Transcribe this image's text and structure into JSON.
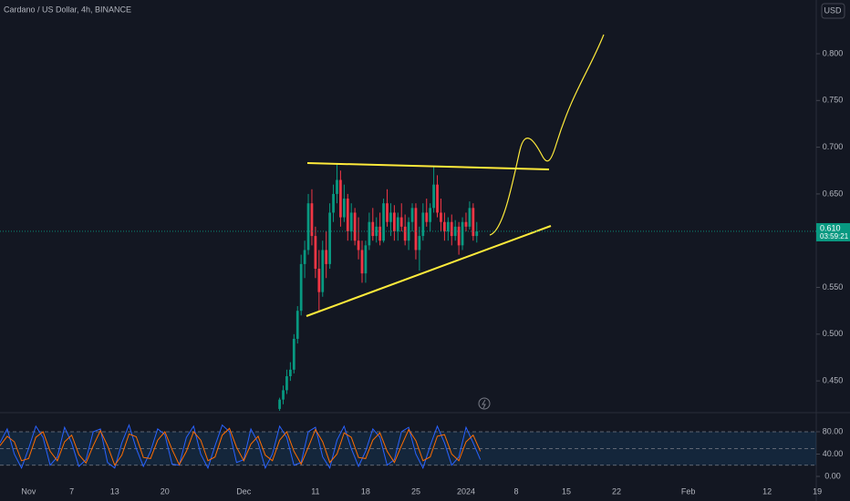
{
  "chart_data": [
    {
      "type": "candlestick",
      "title": "Cardano / US Dollar, 4h, BINANCE",
      "currency": "USD",
      "up_color": "#089981",
      "down_color": "#f23645",
      "x": [
        35,
        35.5,
        36,
        36.5,
        37,
        37.5,
        38,
        38.5,
        39,
        39.5,
        40,
        40.5,
        41,
        41.5,
        42,
        42.5,
        43,
        43.5,
        44,
        44.5,
        45,
        45.5,
        46,
        46.5,
        47,
        47.5,
        48,
        48.5,
        49,
        49.5,
        50,
        50.5,
        51,
        51.5,
        52,
        52.5,
        53,
        53.5,
        54,
        54.5,
        55,
        55.5,
        56,
        56.5,
        57,
        57.5,
        58,
        58.5,
        59,
        59.5,
        60,
        60.5,
        61,
        61.5,
        62,
        62.5
      ],
      "open": [
        0.42,
        0.43,
        0.44,
        0.455,
        0.462,
        0.495,
        0.525,
        0.575,
        0.59,
        0.64,
        0.605,
        0.57,
        0.545,
        0.59,
        0.575,
        0.63,
        0.65,
        0.665,
        0.625,
        0.645,
        0.61,
        0.63,
        0.6,
        0.59,
        0.565,
        0.595,
        0.62,
        0.605,
        0.615,
        0.6,
        0.64,
        0.62,
        0.63,
        0.61,
        0.625,
        0.615,
        0.6,
        0.62,
        0.635,
        0.59,
        0.605,
        0.63,
        0.62,
        0.635,
        0.66,
        0.63,
        0.62,
        0.61,
        0.62,
        0.605,
        0.615,
        0.595,
        0.62,
        0.615,
        0.635,
        0.605
      ],
      "high": [
        0.432,
        0.445,
        0.462,
        0.47,
        0.5,
        0.53,
        0.585,
        0.6,
        0.65,
        0.655,
        0.615,
        0.59,
        0.6,
        0.61,
        0.64,
        0.66,
        0.682,
        0.675,
        0.66,
        0.65,
        0.64,
        0.635,
        0.625,
        0.6,
        0.6,
        0.63,
        0.635,
        0.625,
        0.63,
        0.645,
        0.655,
        0.64,
        0.638,
        0.63,
        0.64,
        0.628,
        0.625,
        0.64,
        0.64,
        0.615,
        0.64,
        0.645,
        0.64,
        0.68,
        0.67,
        0.645,
        0.63,
        0.625,
        0.628,
        0.622,
        0.62,
        0.625,
        0.63,
        0.642,
        0.64,
        0.62
      ],
      "low": [
        0.418,
        0.425,
        0.436,
        0.45,
        0.458,
        0.49,
        0.52,
        0.56,
        0.585,
        0.595,
        0.56,
        0.525,
        0.54,
        0.56,
        0.57,
        0.62,
        0.64,
        0.615,
        0.62,
        0.6,
        0.6,
        0.595,
        0.58,
        0.555,
        0.555,
        0.59,
        0.6,
        0.598,
        0.595,
        0.598,
        0.615,
        0.605,
        0.6,
        0.6,
        0.61,
        0.595,
        0.59,
        0.61,
        0.58,
        0.568,
        0.6,
        0.615,
        0.61,
        0.63,
        0.625,
        0.61,
        0.6,
        0.6,
        0.595,
        0.6,
        0.585,
        0.59,
        0.61,
        0.612,
        0.6,
        0.598
      ],
      "close": [
        0.43,
        0.44,
        0.455,
        0.462,
        0.495,
        0.525,
        0.575,
        0.59,
        0.64,
        0.605,
        0.57,
        0.545,
        0.59,
        0.575,
        0.63,
        0.65,
        0.665,
        0.625,
        0.645,
        0.61,
        0.63,
        0.6,
        0.59,
        0.565,
        0.595,
        0.62,
        0.605,
        0.615,
        0.6,
        0.64,
        0.62,
        0.63,
        0.61,
        0.625,
        0.615,
        0.6,
        0.62,
        0.635,
        0.59,
        0.605,
        0.63,
        0.62,
        0.635,
        0.66,
        0.63,
        0.62,
        0.61,
        0.62,
        0.605,
        0.615,
        0.595,
        0.62,
        0.615,
        0.635,
        0.605,
        0.61
      ],
      "last_price": 0.61,
      "last_price_label": "0.610",
      "countdown": "03:59:21",
      "ylim": [
        0.417,
        0.8575
      ],
      "yticks": [
        {
          "value": 0.8,
          "label": "0.800"
        },
        {
          "value": 0.75,
          "label": "0.750"
        },
        {
          "value": 0.7,
          "label": "0.700"
        },
        {
          "value": 0.65,
          "label": "0.650"
        },
        {
          "value": 0.55,
          "label": "0.550"
        },
        {
          "value": 0.5,
          "label": "0.500"
        },
        {
          "value": 0.45,
          "label": "0.450"
        }
      ],
      "xlim": [
        -4,
        109.85
      ],
      "xticks": [
        {
          "value": 0,
          "label": "Nov"
        },
        {
          "value": 6,
          "label": "7"
        },
        {
          "value": 12,
          "label": "13"
        },
        {
          "value": 19,
          "label": "20"
        },
        {
          "value": 30,
          "label": "Dec"
        },
        {
          "value": 40,
          "label": "11"
        },
        {
          "value": 47,
          "label": "18"
        },
        {
          "value": 54,
          "label": "25"
        },
        {
          "value": 61,
          "label": "2024"
        },
        {
          "value": 68,
          "label": "8"
        },
        {
          "value": 75,
          "label": "15"
        },
        {
          "value": 82,
          "label": "22"
        },
        {
          "value": 92,
          "label": "Feb"
        },
        {
          "value": 103,
          "label": "12"
        },
        {
          "value": 110,
          "label": "19"
        }
      ]
    },
    {
      "type": "line",
      "xlim": [
        -4,
        109.85
      ],
      "ylim": [
        -14.7,
        111
      ],
      "yticks": [
        {
          "value": 80,
          "label": "80.00"
        },
        {
          "value": 40,
          "label": "40.00"
        },
        {
          "value": 0,
          "label": "0.00"
        }
      ],
      "bands": [
        80,
        50,
        20
      ],
      "x": [
        -4,
        -3,
        -2,
        -1,
        0,
        1,
        2,
        3,
        4,
        5,
        6,
        7,
        8,
        9,
        10,
        11,
        12,
        13,
        14,
        15,
        16,
        17,
        18,
        19,
        20,
        21,
        22,
        23,
        24,
        25,
        26,
        27,
        28,
        29,
        30,
        31,
        32,
        33,
        34,
        35,
        36,
        37,
        38,
        39,
        40,
        41,
        42,
        43,
        44,
        45,
        46,
        47,
        48,
        49,
        50,
        51,
        52,
        53,
        54,
        55,
        56,
        57,
        58,
        59,
        60,
        61,
        62,
        63
      ],
      "series": [
        {
          "color": "#2962ff",
          "values": [
            60,
            85,
            40,
            15,
            50,
            90,
            70,
            20,
            35,
            88,
            60,
            18,
            30,
            80,
            85,
            25,
            15,
            60,
            92,
            50,
            18,
            45,
            85,
            75,
            22,
            20,
            70,
            90,
            40,
            15,
            55,
            92,
            80,
            25,
            30,
            85,
            60,
            15,
            40,
            90,
            70,
            20,
            25,
            80,
            88,
            35,
            15,
            65,
            90,
            50,
            18,
            45,
            85,
            70,
            20,
            30,
            80,
            88,
            40,
            15,
            55,
            90,
            60,
            20,
            35,
            88,
            60,
            30
          ]
        },
        {
          "color": "#ff6d00",
          "values": [
            55,
            72,
            62,
            28,
            32,
            70,
            80,
            45,
            28,
            62,
            74,
            39,
            24,
            55,
            82,
            55,
            20,
            38,
            76,
            71,
            34,
            32,
            65,
            80,
            48,
            21,
            45,
            80,
            65,
            28,
            35,
            74,
            86,
            52,
            28,
            58,
            72,
            38,
            28,
            65,
            80,
            45,
            22,
            52,
            84,
            62,
            25,
            40,
            78,
            70,
            34,
            32,
            65,
            78,
            45,
            25,
            55,
            84,
            64,
            28,
            35,
            72,
            75,
            40,
            28,
            62,
            74,
            45
          ]
        }
      ]
    }
  ]
}
